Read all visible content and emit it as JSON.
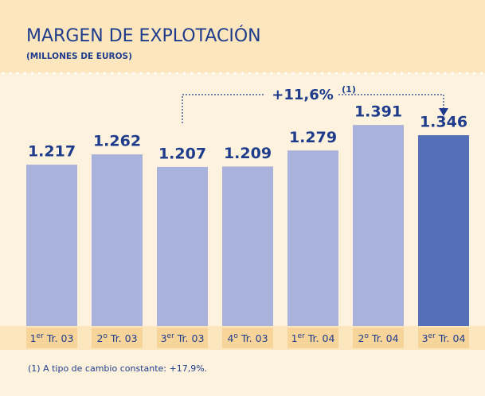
{
  "chart_data": {
    "type": "bar",
    "title": "MARGEN DE EXPLOTACIÓN",
    "subtitle": "(MILLONES DE EUROS)",
    "categories": [
      "1er Tr. 03",
      "2o Tr. 03",
      "3er Tr. 03",
      "4o Tr. 03",
      "1er Tr. 04",
      "2o Tr. 04",
      "3er Tr. 04"
    ],
    "values": [
      1217,
      1262,
      1207,
      1209,
      1279,
      1391,
      1346
    ],
    "value_labels": [
      "1.217",
      "1.262",
      "1.207",
      "1.209",
      "1.279",
      "1.391",
      "1.346"
    ],
    "colors": [
      "#a9b2dc",
      "#a9b2dc",
      "#a9b2dc",
      "#a9b2dc",
      "#a9b2dc",
      "#a9b2dc",
      "#5370b6"
    ],
    "ylim": [
      510,
      1590
    ],
    "annotation": "+11,6%",
    "annotation_note": "(1)",
    "footnote": "(1)  A tipo de cambio constante: +17,9%."
  }
}
